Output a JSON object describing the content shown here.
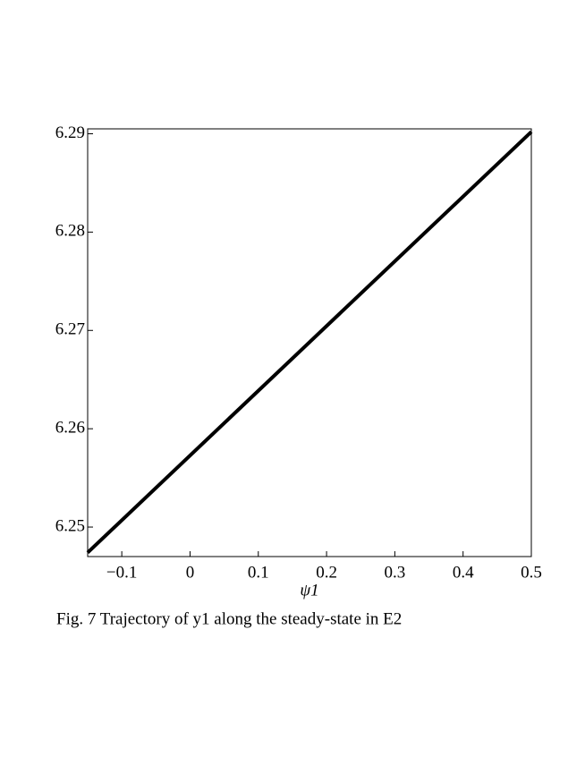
{
  "chart_data": {
    "type": "line",
    "x_label": "ψ1",
    "caption": "Fig. 7  Trajectory of y1 along the steady-state in E2",
    "x": [
      -0.15,
      0.5
    ],
    "series": [
      {
        "name": "y1",
        "color": "#000000",
        "values": [
          6.2474,
          6.2902
        ]
      }
    ],
    "xlim": [
      -0.15,
      0.5
    ],
    "xticks": [
      {
        "value": -0.1,
        "label": "−0.1"
      },
      0,
      0.1,
      0.2,
      0.3,
      0.4,
      0.5
    ],
    "ylim": [
      6.247,
      6.2905
    ],
    "yticks": [
      6.25,
      6.26,
      6.27,
      6.28,
      6.29
    ]
  }
}
